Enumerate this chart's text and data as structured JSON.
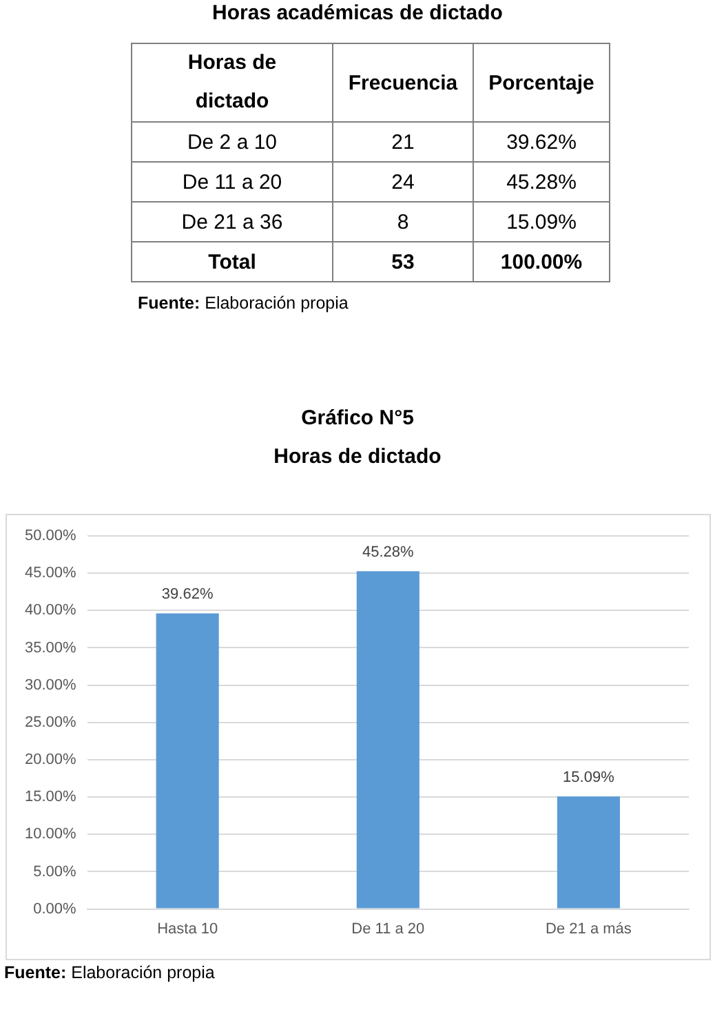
{
  "chart_data": [
    {
      "type": "other",
      "title": "Horas académicas de dictado",
      "xlabel": "Horas de dictado",
      "categories": [
        "De 2 a 10",
        "De 11 a 20",
        "De 21 a 36",
        "Total"
      ],
      "series": [
        {
          "name": "Frecuencia",
          "values": [
            21,
            24,
            8,
            53
          ],
          "value_labels": [
            "21",
            "24",
            "8",
            "53"
          ]
        },
        {
          "name": "Porcentaje",
          "values": [
            39.62,
            45.28,
            15.09,
            100.0
          ],
          "value_labels": [
            "39.62%",
            "45.28%",
            "15.09%",
            "100.00%"
          ]
        }
      ],
      "annotations": [
        "Fuente: Elaboración propia"
      ]
    },
    {
      "type": "bar",
      "title": "Gráfico N°5",
      "subtitle": "Horas de dictado",
      "categories": [
        "Hasta 10",
        "De 11 a 20",
        "De 21 a más"
      ],
      "values": [
        39.62,
        45.28,
        15.09
      ],
      "color": "#5b9bd5",
      "value_labels": [
        "39.62%",
        "45.28%",
        "15.09%"
      ],
      "ylim": [
        0,
        50
      ],
      "yticks": [
        {
          "value": 0,
          "label": "0.00%"
        },
        {
          "value": 5,
          "label": "5.00%"
        },
        {
          "value": 10,
          "label": "10.00%"
        },
        {
          "value": 15,
          "label": "15.00%"
        },
        {
          "value": 20,
          "label": "20.00%"
        },
        {
          "value": 25,
          "label": "25.00%"
        },
        {
          "value": 30,
          "label": "30.00%"
        },
        {
          "value": 35,
          "label": "35.00%"
        },
        {
          "value": 40,
          "label": "40.00%"
        },
        {
          "value": 45,
          "label": "45.00%"
        },
        {
          "value": 50,
          "label": "50.00%"
        }
      ],
      "grid": "y",
      "annotations": [
        "Fuente: Elaboración propia"
      ]
    }
  ]
}
